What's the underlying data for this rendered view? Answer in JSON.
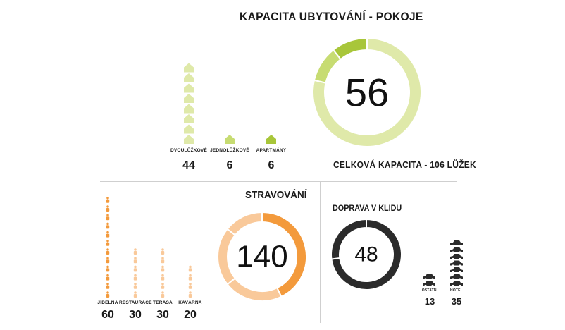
{
  "colors": {
    "green_light": "#dfe9a9",
    "green_mid": "#c7dc72",
    "green_dark": "#a8c63a",
    "orange_light": "#f9c99a",
    "orange_dark": "#f39a3c",
    "gray_dark": "#2b2b2b",
    "gray_mid": "#6b6b6b",
    "divider": "#cfcfcf"
  },
  "rooms": {
    "title": "KAPACITA UBYTOVÁNÍ - POKOJE",
    "total": "56",
    "capacity_text": "CELKOVÁ KAPACITA - 106 LŮŽEK",
    "categories": [
      {
        "label": "DVOULŮŽKOVÉ",
        "value": "44",
        "icons": 8
      },
      {
        "label": "JEDNOLŮŽKOVÉ",
        "value": "6",
        "icons": 1
      },
      {
        "label": "APARTMÁNY",
        "value": "6",
        "icons": 1
      }
    ]
  },
  "dining": {
    "title": "STRAVOVÁNÍ",
    "total": "140",
    "categories": [
      {
        "label": "JÍDELNA",
        "value": "60",
        "icons": 12
      },
      {
        "label": "RESTAURACE",
        "value": "30",
        "icons": 6
      },
      {
        "label": "TERASA",
        "value": "30",
        "icons": 6
      },
      {
        "label": "KAVÁRNA",
        "value": "20",
        "icons": 4
      }
    ]
  },
  "parking": {
    "title": "DOPRAVA V KLIDU",
    "total": "48",
    "categories": [
      {
        "label": "OSTATNÍ",
        "value": "13",
        "icons": 2
      },
      {
        "label": "HOTEL",
        "value": "35",
        "icons": 7
      }
    ]
  },
  "chart_data": [
    {
      "type": "pie",
      "title": "KAPACITA UBYTOVÁNÍ - POKOJE",
      "center_label": "56",
      "categories": [
        "DVOULŮŽKOVÉ",
        "JEDNOLŮŽKOVÉ",
        "APARTMÁNY"
      ],
      "values": [
        44,
        6,
        6
      ],
      "colors": [
        "#dfe9a9",
        "#c7dc72",
        "#a8c63a"
      ]
    },
    {
      "type": "pie",
      "title": "STRAVOVÁNÍ",
      "center_label": "140",
      "categories": [
        "JÍDELNA",
        "RESTAURACE",
        "TERASA",
        "KAVÁRNA"
      ],
      "values": [
        60,
        30,
        30,
        20
      ],
      "colors": [
        "#f39a3c",
        "#f9c99a",
        "#f9c99a",
        "#f9c99a"
      ]
    },
    {
      "type": "pie",
      "title": "DOPRAVA V KLIDU",
      "center_label": "48",
      "categories": [
        "HOTEL",
        "OSTATNÍ"
      ],
      "values": [
        35,
        13
      ],
      "colors": [
        "#2b2b2b",
        "#2b2b2b"
      ]
    }
  ]
}
